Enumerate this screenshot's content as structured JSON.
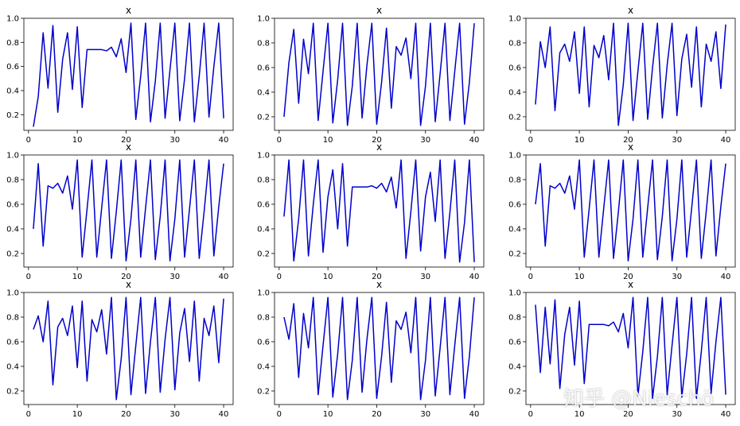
{
  "watermark": "知乎 @Nieschö",
  "colors": {
    "line": "#0000cc",
    "axes": "#000000",
    "background": "#ffffff"
  },
  "chart_data": [
    {
      "type": "line",
      "title": "x",
      "xlim": [
        -0.95,
        41.95
      ],
      "ylim": [
        0.07,
        1.0
      ],
      "xticks": [
        0,
        10,
        20,
        30,
        40
      ],
      "yticks": [
        0.2,
        0.4,
        0.6,
        0.8,
        1.0
      ],
      "x": [
        1,
        2,
        3,
        4,
        5,
        6,
        7,
        8,
        9,
        10,
        11,
        12,
        13,
        14,
        15,
        16,
        17,
        18,
        19,
        20,
        21,
        22,
        23,
        24,
        25,
        26,
        27,
        28,
        29,
        30,
        31,
        32,
        33,
        34,
        35,
        36,
        37,
        38,
        39,
        40
      ],
      "values": [
        0.1,
        0.35,
        0.88,
        0.42,
        0.94,
        0.22,
        0.66,
        0.88,
        0.41,
        0.93,
        0.26,
        0.74,
        0.74,
        0.74,
        0.74,
        0.73,
        0.76,
        0.68,
        0.83,
        0.55,
        0.96,
        0.16,
        0.52,
        0.96,
        0.14,
        0.48,
        0.96,
        0.17,
        0.57,
        0.96,
        0.15,
        0.5,
        0.96,
        0.14,
        0.52,
        0.96,
        0.18,
        0.6,
        0.96,
        0.17
      ]
    },
    {
      "type": "line",
      "title": "x",
      "xlim": [
        -0.95,
        41.95
      ],
      "ylim": [
        0.09,
        1.0
      ],
      "xticks": [
        0,
        10,
        20,
        30,
        40
      ],
      "yticks": [
        0.2,
        0.4,
        0.6,
        0.8,
        1.0
      ],
      "x": [
        1,
        2,
        3,
        4,
        5,
        6,
        7,
        8,
        9,
        10,
        11,
        12,
        13,
        14,
        15,
        16,
        17,
        18,
        19,
        20,
        21,
        22,
        23,
        24,
        25,
        26,
        27,
        28,
        29,
        30,
        31,
        32,
        33,
        34,
        35,
        36,
        37,
        38,
        39,
        40
      ],
      "values": [
        0.2,
        0.64,
        0.91,
        0.31,
        0.83,
        0.55,
        0.96,
        0.17,
        0.57,
        0.96,
        0.15,
        0.5,
        0.96,
        0.13,
        0.45,
        0.96,
        0.19,
        0.62,
        0.96,
        0.14,
        0.48,
        0.92,
        0.27,
        0.77,
        0.7,
        0.84,
        0.51,
        0.96,
        0.13,
        0.45,
        0.96,
        0.16,
        0.55,
        0.96,
        0.17,
        0.57,
        0.96,
        0.14,
        0.48,
        0.96
      ]
    },
    {
      "type": "line",
      "title": "x",
      "xlim": [
        -0.95,
        41.95
      ],
      "ylim": [
        0.09,
        1.0
      ],
      "xticks": [
        0,
        10,
        20,
        30,
        40
      ],
      "yticks": [
        0.2,
        0.4,
        0.6,
        0.8,
        1.0
      ],
      "x": [
        1,
        2,
        3,
        4,
        5,
        6,
        7,
        8,
        9,
        10,
        11,
        12,
        13,
        14,
        15,
        16,
        17,
        18,
        19,
        20,
        21,
        22,
        23,
        24,
        25,
        26,
        27,
        28,
        29,
        30,
        31,
        32,
        33,
        34,
        35,
        36,
        37,
        38,
        39,
        40
      ],
      "values": [
        0.3,
        0.81,
        0.6,
        0.93,
        0.25,
        0.72,
        0.79,
        0.65,
        0.89,
        0.39,
        0.93,
        0.28,
        0.78,
        0.68,
        0.86,
        0.5,
        0.96,
        0.13,
        0.46,
        0.96,
        0.17,
        0.57,
        0.96,
        0.18,
        0.6,
        0.96,
        0.19,
        0.62,
        0.96,
        0.21,
        0.67,
        0.87,
        0.44,
        0.93,
        0.28,
        0.79,
        0.65,
        0.89,
        0.43,
        0.95
      ]
    },
    {
      "type": "line",
      "title": "x",
      "xlim": [
        -0.95,
        41.95
      ],
      "ylim": [
        0.09,
        1.0
      ],
      "xticks": [
        0,
        10,
        20,
        30,
        40
      ],
      "yticks": [
        0.2,
        0.4,
        0.6,
        0.8,
        1.0
      ],
      "x": [
        1,
        2,
        3,
        4,
        5,
        6,
        7,
        8,
        9,
        10,
        11,
        12,
        13,
        14,
        15,
        16,
        17,
        18,
        19,
        20,
        21,
        22,
        23,
        24,
        25,
        26,
        27,
        28,
        29,
        30,
        31,
        32,
        33,
        34,
        35,
        36,
        37,
        38,
        39,
        40
      ],
      "values": [
        0.4,
        0.93,
        0.26,
        0.75,
        0.73,
        0.77,
        0.69,
        0.83,
        0.56,
        0.96,
        0.17,
        0.56,
        0.96,
        0.17,
        0.57,
        0.96,
        0.16,
        0.54,
        0.96,
        0.14,
        0.48,
        0.96,
        0.17,
        0.57,
        0.96,
        0.15,
        0.5,
        0.96,
        0.14,
        0.48,
        0.96,
        0.17,
        0.56,
        0.96,
        0.16,
        0.54,
        0.96,
        0.18,
        0.58,
        0.93
      ]
    },
    {
      "type": "line",
      "title": "x",
      "xlim": [
        -0.95,
        41.95
      ],
      "ylim": [
        0.09,
        1.0
      ],
      "xticks": [
        0,
        10,
        20,
        30,
        40
      ],
      "yticks": [
        0.2,
        0.4,
        0.6,
        0.8,
        1.0
      ],
      "x": [
        1,
        2,
        3,
        4,
        5,
        6,
        7,
        8,
        9,
        10,
        11,
        12,
        13,
        14,
        15,
        16,
        17,
        18,
        19,
        20,
        21,
        22,
        23,
        24,
        25,
        26,
        27,
        28,
        29,
        30,
        31,
        32,
        33,
        34,
        35,
        36,
        37,
        38,
        39,
        40
      ],
      "values": [
        0.5,
        0.96,
        0.14,
        0.48,
        0.96,
        0.18,
        0.6,
        0.96,
        0.21,
        0.66,
        0.88,
        0.4,
        0.93,
        0.26,
        0.74,
        0.74,
        0.74,
        0.74,
        0.75,
        0.73,
        0.77,
        0.7,
        0.82,
        0.57,
        0.96,
        0.16,
        0.54,
        0.96,
        0.22,
        0.66,
        0.86,
        0.46,
        0.96,
        0.16,
        0.53,
        0.96,
        0.13,
        0.45,
        0.96,
        0.13
      ]
    },
    {
      "type": "line",
      "title": "x",
      "xlim": [
        -0.95,
        41.95
      ],
      "ylim": [
        0.09,
        1.0
      ],
      "xticks": [
        0,
        10,
        20,
        30,
        40
      ],
      "yticks": [
        0.2,
        0.4,
        0.6,
        0.8,
        1.0
      ],
      "x": [
        1,
        2,
        3,
        4,
        5,
        6,
        7,
        8,
        9,
        10,
        11,
        12,
        13,
        14,
        15,
        16,
        17,
        18,
        19,
        20,
        21,
        22,
        23,
        24,
        25,
        26,
        27,
        28,
        29,
        30,
        31,
        32,
        33,
        34,
        35,
        36,
        37,
        38,
        39,
        40
      ],
      "values": [
        0.6,
        0.93,
        0.26,
        0.75,
        0.73,
        0.77,
        0.69,
        0.83,
        0.56,
        0.96,
        0.17,
        0.56,
        0.96,
        0.17,
        0.57,
        0.96,
        0.16,
        0.54,
        0.96,
        0.14,
        0.48,
        0.96,
        0.17,
        0.57,
        0.96,
        0.15,
        0.5,
        0.96,
        0.14,
        0.48,
        0.96,
        0.17,
        0.56,
        0.96,
        0.16,
        0.54,
        0.96,
        0.18,
        0.58,
        0.93
      ]
    },
    {
      "type": "line",
      "title": "x",
      "xlim": [
        -0.95,
        41.95
      ],
      "ylim": [
        0.09,
        1.0
      ],
      "xticks": [
        0,
        10,
        20,
        30,
        40
      ],
      "yticks": [
        0.2,
        0.4,
        0.6,
        0.8,
        1.0
      ],
      "x": [
        1,
        2,
        3,
        4,
        5,
        6,
        7,
        8,
        9,
        10,
        11,
        12,
        13,
        14,
        15,
        16,
        17,
        18,
        19,
        20,
        21,
        22,
        23,
        24,
        25,
        26,
        27,
        28,
        29,
        30,
        31,
        32,
        33,
        34,
        35,
        36,
        37,
        38,
        39,
        40
      ],
      "values": [
        0.7,
        0.81,
        0.6,
        0.93,
        0.25,
        0.72,
        0.79,
        0.65,
        0.89,
        0.39,
        0.93,
        0.28,
        0.78,
        0.68,
        0.86,
        0.5,
        0.96,
        0.13,
        0.46,
        0.96,
        0.17,
        0.57,
        0.96,
        0.18,
        0.6,
        0.96,
        0.19,
        0.62,
        0.96,
        0.21,
        0.67,
        0.87,
        0.44,
        0.93,
        0.28,
        0.79,
        0.65,
        0.89,
        0.43,
        0.95
      ]
    },
    {
      "type": "line",
      "title": "x",
      "xlim": [
        -0.95,
        41.95
      ],
      "ylim": [
        0.09,
        1.0
      ],
      "xticks": [
        0,
        10,
        20,
        30,
        40
      ],
      "yticks": [
        0.2,
        0.4,
        0.6,
        0.8,
        1.0
      ],
      "x": [
        1,
        2,
        3,
        4,
        5,
        6,
        7,
        8,
        9,
        10,
        11,
        12,
        13,
        14,
        15,
        16,
        17,
        18,
        19,
        20,
        21,
        22,
        23,
        24,
        25,
        26,
        27,
        28,
        29,
        30,
        31,
        32,
        33,
        34,
        35,
        36,
        37,
        38,
        39,
        40
      ],
      "values": [
        0.8,
        0.62,
        0.91,
        0.31,
        0.83,
        0.55,
        0.96,
        0.17,
        0.57,
        0.96,
        0.15,
        0.5,
        0.96,
        0.13,
        0.45,
        0.96,
        0.19,
        0.62,
        0.96,
        0.14,
        0.48,
        0.92,
        0.27,
        0.77,
        0.7,
        0.84,
        0.51,
        0.96,
        0.13,
        0.45,
        0.96,
        0.16,
        0.55,
        0.96,
        0.17,
        0.57,
        0.96,
        0.14,
        0.48,
        0.96
      ]
    },
    {
      "type": "line",
      "title": "x",
      "xlim": [
        -0.95,
        41.95
      ],
      "ylim": [
        0.09,
        1.0
      ],
      "xticks": [
        0,
        10,
        20,
        30,
        40
      ],
      "yticks": [
        0.2,
        0.4,
        0.6,
        0.8,
        1.0
      ],
      "x": [
        1,
        2,
        3,
        4,
        5,
        6,
        7,
        8,
        9,
        10,
        11,
        12,
        13,
        14,
        15,
        16,
        17,
        18,
        19,
        20,
        21,
        22,
        23,
        24,
        25,
        26,
        27,
        28,
        29,
        30,
        31,
        32,
        33,
        34,
        35,
        36,
        37,
        38,
        39,
        40
      ],
      "values": [
        0.9,
        0.35,
        0.88,
        0.42,
        0.94,
        0.22,
        0.66,
        0.88,
        0.41,
        0.93,
        0.26,
        0.74,
        0.74,
        0.74,
        0.74,
        0.73,
        0.76,
        0.68,
        0.83,
        0.55,
        0.96,
        0.16,
        0.52,
        0.96,
        0.14,
        0.48,
        0.96,
        0.17,
        0.57,
        0.96,
        0.15,
        0.5,
        0.96,
        0.14,
        0.52,
        0.96,
        0.18,
        0.6,
        0.96,
        0.17
      ]
    }
  ]
}
